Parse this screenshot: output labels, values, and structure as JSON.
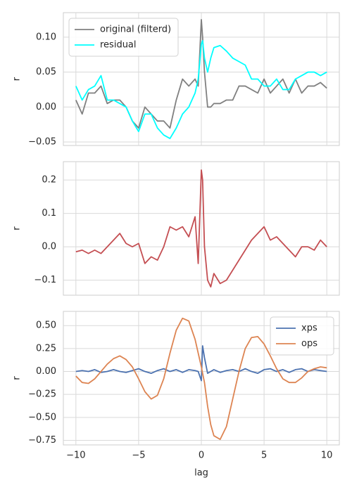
{
  "chart_data": [
    {
      "type": "line",
      "x": [
        -10,
        -9.5,
        -9,
        -8.5,
        -8,
        -7.5,
        -7,
        -6.5,
        -6,
        -5.5,
        -5,
        -4.5,
        -4,
        -3.5,
        -3,
        -2.5,
        -2,
        -1.5,
        -1,
        -0.5,
        -0.25,
        0,
        0.1,
        0.25,
        0.5,
        0.75,
        1,
        1.5,
        2,
        2.5,
        3,
        3.5,
        4,
        4.5,
        5,
        5.5,
        6,
        6.5,
        7,
        7.5,
        8,
        8.5,
        9,
        9.5,
        10
      ],
      "series": [
        {
          "name": "original (filterd)",
          "color": "#808080",
          "values": [
            0.01,
            -0.01,
            0.02,
            0.02,
            0.03,
            0.005,
            0.01,
            0.01,
            0.0,
            -0.02,
            -0.03,
            0.0,
            -0.01,
            -0.02,
            -0.02,
            -0.03,
            0.01,
            0.04,
            0.03,
            0.04,
            0.03,
            0.125,
            0.1,
            0.05,
            0.0,
            0.0,
            0.005,
            0.005,
            0.01,
            0.01,
            0.03,
            0.03,
            0.025,
            0.02,
            0.04,
            0.02,
            0.03,
            0.04,
            0.02,
            0.04,
            0.02,
            0.03,
            0.03,
            0.035,
            0.027
          ]
        },
        {
          "name": "residual",
          "color": "#00ffff",
          "values": [
            0.03,
            0.01,
            0.025,
            0.03,
            0.045,
            0.01,
            0.01,
            0.005,
            0.0,
            -0.02,
            -0.035,
            -0.01,
            -0.01,
            -0.03,
            -0.04,
            -0.045,
            -0.03,
            -0.01,
            0.0,
            0.02,
            0.04,
            0.09,
            0.095,
            0.07,
            0.05,
            0.07,
            0.085,
            0.088,
            0.08,
            0.07,
            0.065,
            0.06,
            0.04,
            0.04,
            0.03,
            0.03,
            0.04,
            0.025,
            0.025,
            0.04,
            0.045,
            0.05,
            0.05,
            0.045,
            0.05
          ]
        }
      ],
      "y_label": "r",
      "xlim": [
        -11,
        11
      ],
      "xticks": [
        -10,
        -5,
        0,
        5,
        10
      ],
      "ylim": [
        -0.055,
        0.135
      ],
      "yticks": [
        {
          "value": -0.05,
          "label": "−0.05"
        },
        {
          "value": 0,
          "label": "0.00"
        },
        {
          "value": 0.05,
          "label": "0.05"
        },
        {
          "value": 0.1,
          "label": "0.10"
        }
      ],
      "grid": true,
      "legend": "upper left"
    },
    {
      "type": "line",
      "x": [
        -10,
        -9.5,
        -9,
        -8.5,
        -8,
        -7.5,
        -7,
        -6.5,
        -6,
        -5.5,
        -5,
        -4.5,
        -4,
        -3.5,
        -3,
        -2.5,
        -2,
        -1.5,
        -1,
        -0.5,
        -0.25,
        0,
        0.1,
        0.25,
        0.5,
        0.75,
        1,
        1.5,
        2,
        2.5,
        3,
        3.5,
        4,
        4.5,
        5,
        5.5,
        6,
        6.5,
        7,
        7.5,
        8,
        8.5,
        9,
        9.5,
        10
      ],
      "series": [
        {
          "color": "#c44e52",
          "values": [
            -0.015,
            -0.01,
            -0.02,
            -0.01,
            -0.02,
            0.0,
            0.02,
            0.04,
            0.01,
            0.0,
            0.01,
            -0.05,
            -0.03,
            -0.04,
            0.0,
            0.06,
            0.05,
            0.06,
            0.03,
            0.09,
            -0.05,
            0.23,
            0.2,
            0.0,
            -0.1,
            -0.12,
            -0.08,
            -0.11,
            -0.1,
            -0.07,
            -0.04,
            -0.01,
            0.02,
            0.04,
            0.06,
            0.02,
            0.03,
            0.01,
            -0.01,
            -0.03,
            0.0,
            0.0,
            -0.01,
            0.02,
            0.0
          ]
        }
      ],
      "y_label": "r",
      "xlim": [
        -11,
        11
      ],
      "xticks": [
        -10,
        -5,
        0,
        5,
        10
      ],
      "ylim": [
        -0.145,
        0.255
      ],
      "yticks": [
        {
          "value": -0.1,
          "label": "−0.1"
        },
        {
          "value": 0,
          "label": "0.0"
        },
        {
          "value": 0.1,
          "label": "0.1"
        },
        {
          "value": 0.2,
          "label": "0.2"
        }
      ],
      "grid": true
    },
    {
      "type": "line",
      "x": [
        -10,
        -9.5,
        -9,
        -8.5,
        -8,
        -7.5,
        -7,
        -6.5,
        -6,
        -5.5,
        -5,
        -4.5,
        -4,
        -3.5,
        -3,
        -2.5,
        -2,
        -1.5,
        -1,
        -0.5,
        -0.25,
        0,
        0.1,
        0.25,
        0.5,
        0.75,
        1,
        1.5,
        2,
        2.5,
        3,
        3.5,
        4,
        4.5,
        5,
        5.5,
        6,
        6.5,
        7,
        7.5,
        8,
        8.5,
        9,
        9.5,
        10
      ],
      "series": [
        {
          "name": "xps",
          "color": "#4c72b0",
          "values": [
            0.0,
            0.01,
            0.0,
            0.02,
            -0.01,
            0.0,
            0.02,
            0.0,
            -0.01,
            0.01,
            0.03,
            0.0,
            -0.02,
            0.01,
            0.03,
            0.0,
            0.02,
            -0.01,
            0.02,
            0.01,
            0.0,
            -0.1,
            0.28,
            0.15,
            -0.02,
            0.0,
            0.02,
            -0.01,
            0.01,
            0.02,
            0.0,
            0.03,
            0.0,
            -0.02,
            0.02,
            0.03,
            0.0,
            0.02,
            -0.01,
            0.02,
            0.03,
            0.0,
            0.02,
            0.01,
            0.0
          ]
        },
        {
          "name": "ops",
          "color": "#dd8452",
          "values": [
            -0.05,
            -0.12,
            -0.13,
            -0.08,
            0.0,
            0.08,
            0.14,
            0.17,
            0.13,
            0.05,
            -0.08,
            -0.22,
            -0.3,
            -0.26,
            -0.08,
            0.2,
            0.45,
            0.58,
            0.55,
            0.35,
            0.2,
            0.05,
            -0.02,
            -0.12,
            -0.38,
            -0.58,
            -0.7,
            -0.74,
            -0.6,
            -0.3,
            0.0,
            0.25,
            0.37,
            0.38,
            0.3,
            0.17,
            0.03,
            -0.08,
            -0.12,
            -0.12,
            -0.07,
            0.0,
            0.03,
            0.05,
            0.04
          ]
        }
      ],
      "x_label": "lag",
      "y_label": "r",
      "xlim": [
        -11,
        11
      ],
      "xticks": [
        {
          "value": -10,
          "label": "−10"
        },
        {
          "value": -5,
          "label": "−5"
        },
        0,
        5,
        10
      ],
      "ylim": [
        -0.8,
        0.655
      ],
      "yticks": [
        {
          "value": -0.75,
          "label": "−0.75"
        },
        {
          "value": -0.5,
          "label": "−0.50"
        },
        {
          "value": -0.25,
          "label": "−0.25"
        },
        {
          "value": 0,
          "label": "0.00"
        },
        {
          "value": 0.25,
          "label": "0.25"
        },
        {
          "value": 0.5,
          "label": "0.50"
        }
      ],
      "grid": true,
      "legend": "upper right"
    }
  ]
}
